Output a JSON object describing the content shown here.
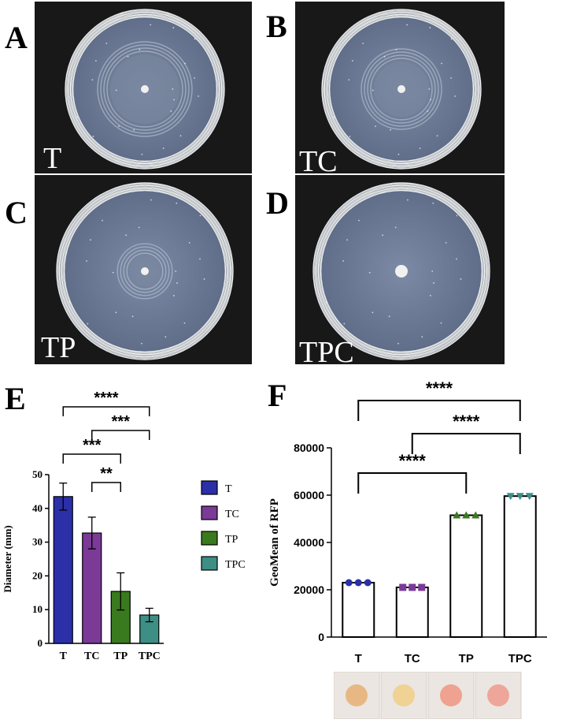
{
  "panels": {
    "A": {
      "letter": "A",
      "label": "T"
    },
    "B": {
      "letter": "B",
      "label": "TC"
    },
    "C": {
      "letter": "C",
      "label": "TP"
    },
    "D": {
      "letter": "D",
      "label": "TPC"
    },
    "E": {
      "letter": "E"
    },
    "F": {
      "letter": "F"
    }
  },
  "colors": {
    "T": "#2b2fa8",
    "TC": "#7a3a96",
    "TP": "#3a7a1e",
    "TPC": "#3d8f86"
  },
  "chart_data": [
    {
      "type": "bar",
      "panel": "E",
      "categories": [
        "T",
        "TC",
        "TP",
        "TPC"
      ],
      "values": [
        43.5,
        32.7,
        15.4,
        8.4
      ],
      "error": [
        4.0,
        4.7,
        5.5,
        2.0
      ],
      "ylabel": "Diameter (mm)",
      "xlabel": "",
      "ylim": [
        0,
        50
      ],
      "yticks": [
        0,
        10,
        20,
        30,
        40,
        50
      ],
      "legend": {
        "placement": "right",
        "entries": [
          "T",
          "TC",
          "TP",
          "TPC"
        ]
      },
      "significance": [
        {
          "from": "T",
          "to": "TPC",
          "label": "****"
        },
        {
          "from": "TC",
          "to": "TPC",
          "label": "***"
        },
        {
          "from": "T",
          "to": "TP",
          "label": "***"
        },
        {
          "from": "TC",
          "to": "TP",
          "label": "**"
        }
      ]
    },
    {
      "type": "bar",
      "panel": "F",
      "categories": [
        "T",
        "TC",
        "TP",
        "TPC"
      ],
      "values": [
        23000,
        21000,
        51500,
        59600
      ],
      "points": [
        [
          23000,
          23000,
          23000
        ],
        [
          21000,
          21000,
          21000
        ],
        [
          51500,
          51500,
          51500
        ],
        [
          59600,
          59600,
          59600
        ]
      ],
      "markers": [
        "circle",
        "square",
        "triangle-up",
        "triangle-down"
      ],
      "ylabel": "GeoMean of RFP",
      "xlabel": "",
      "ylim": [
        0,
        80000
      ],
      "yticks": [
        0,
        20000,
        40000,
        60000,
        80000
      ],
      "significance": [
        {
          "from": "T",
          "to": "TPC",
          "label": "****"
        },
        {
          "from": "TC",
          "to": "TPC",
          "label": "****"
        },
        {
          "from": "T",
          "to": "TP",
          "label": "****"
        }
      ],
      "pellet_colors": [
        "#e8b27a",
        "#f0cf8c",
        "#ee9a86",
        "#ef9e92"
      ]
    }
  ]
}
